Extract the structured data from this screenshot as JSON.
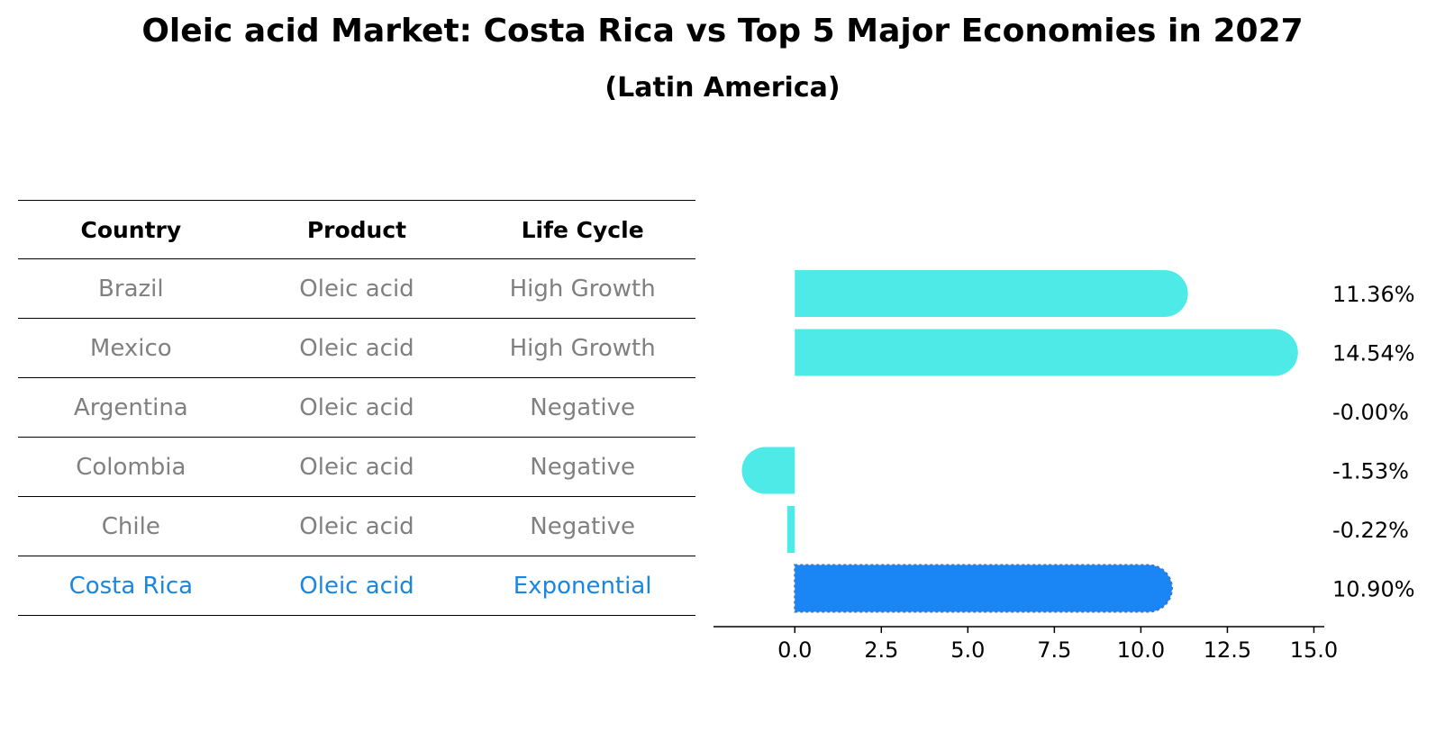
{
  "title": "Oleic acid Market: Costa Rica vs Top 5 Major Economies in 2027",
  "subtitle": "(Latin America)",
  "table": {
    "headers": [
      "Country",
      "Product",
      "Life Cycle"
    ],
    "rows": [
      [
        "Brazil",
        "Oleic acid",
        "High Growth"
      ],
      [
        "Mexico",
        "Oleic acid",
        "High Growth"
      ],
      [
        "Argentina",
        "Oleic acid",
        "Negative"
      ],
      [
        "Colombia",
        "Oleic acid",
        "Negative"
      ],
      [
        "Chile",
        "Oleic acid",
        "Negative"
      ],
      [
        "Costa Rica",
        "Oleic acid",
        "Exponential"
      ]
    ]
  },
  "chart_data": {
    "type": "bar",
    "orientation": "horizontal",
    "categories": [
      "Brazil",
      "Mexico",
      "Argentina",
      "Colombia",
      "Chile",
      "Costa Rica"
    ],
    "values": [
      11.36,
      14.54,
      -0.0,
      -1.53,
      -0.22,
      10.9
    ],
    "labels": [
      "11.36%",
      "14.54%",
      "-0.00%",
      "-1.53%",
      "-0.22%",
      "10.90%"
    ],
    "highlight": "Costa Rica",
    "xlim": [
      -2.35,
      15.3
    ],
    "xticks": [
      0.0,
      2.5,
      5.0,
      7.5,
      10.0,
      12.5,
      15.0
    ],
    "xtick_labels": [
      "0.0",
      "2.5",
      "5.0",
      "7.5",
      "10.0",
      "12.5",
      "15.0"
    ],
    "colors": {
      "default": "#4deae8",
      "highlight": "#1a86f5"
    }
  }
}
